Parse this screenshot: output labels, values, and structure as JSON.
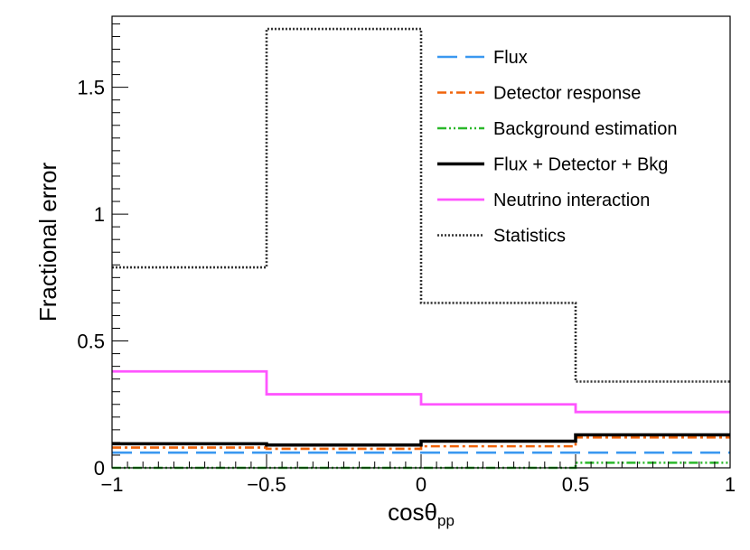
{
  "chart_data": {
    "type": "line",
    "step": true,
    "xlabel_main": "cosθ",
    "xlabel_sub": "pp",
    "ylabel": "Fractional error",
    "xlim": [
      -1,
      1
    ],
    "ylim": [
      0,
      1.78
    ],
    "bin_edges": [
      -1,
      -0.5,
      0,
      0.5,
      1
    ],
    "x_ticks": [
      {
        "value": -1,
        "label": "−1"
      },
      {
        "value": -0.5,
        "label": "−0.5"
      },
      {
        "value": 0,
        "label": "0"
      },
      {
        "value": 0.5,
        "label": "0.5"
      },
      {
        "value": 1,
        "label": "1"
      }
    ],
    "y_ticks": [
      {
        "value": 0,
        "label": "0"
      },
      {
        "value": 0.5,
        "label": "0.5"
      },
      {
        "value": 1,
        "label": "1"
      },
      {
        "value": 1.5,
        "label": "1.5"
      }
    ],
    "legend_position": "top-right",
    "series": [
      {
        "id": "flux",
        "name": "Flux",
        "color": "#3a98f0",
        "dash": "dashed",
        "values": [
          0.06,
          0.06,
          0.06,
          0.06
        ]
      },
      {
        "id": "detector",
        "name": "Detector response",
        "color": "#f0640a",
        "dash": "dashdot",
        "values": [
          0.08,
          0.075,
          0.085,
          0.12
        ]
      },
      {
        "id": "background",
        "name": "Background estimation",
        "color": "#2ab82a",
        "dash": "dashdotdot",
        "values": [
          0.0,
          0.0,
          0.0,
          0.02
        ]
      },
      {
        "id": "combined",
        "name": "Flux + Detector + Bkg",
        "color": "#000000",
        "dash": "solid",
        "values": [
          0.095,
          0.09,
          0.105,
          0.13
        ]
      },
      {
        "id": "neutrino",
        "name": "Neutrino interaction",
        "color": "#ff55ff",
        "dash": "solid",
        "values": [
          0.38,
          0.29,
          0.25,
          0.22
        ]
      },
      {
        "id": "statistics",
        "name": "Statistics",
        "color": "#333333",
        "dash": "dotted",
        "values": [
          0.79,
          1.73,
          0.65,
          0.34
        ]
      }
    ]
  }
}
